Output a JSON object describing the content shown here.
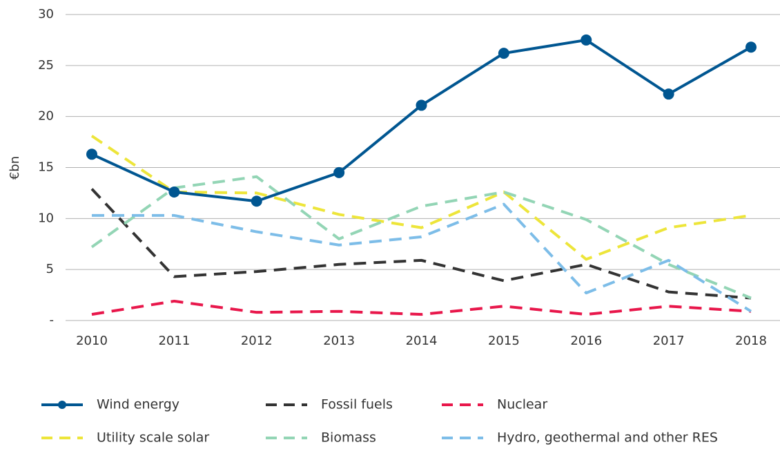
{
  "chart_data": {
    "type": "line",
    "y_label": "€bn",
    "categories": [
      "2010",
      "2011",
      "2012",
      "2013",
      "2014",
      "2015",
      "2016",
      "2017",
      "2018"
    ],
    "ylim": [
      0,
      30
    ],
    "yticks": [
      {
        "value": 0,
        "label": "-"
      },
      5,
      10,
      15,
      20,
      25,
      30
    ],
    "grid": true,
    "legend": "bottom",
    "series": [
      {
        "name": "Wind energy",
        "color": "#005691",
        "dashed": false,
        "markers": true,
        "values": [
          16.3,
          12.6,
          11.7,
          14.5,
          21.1,
          26.2,
          27.5,
          22.2,
          26.8
        ]
      },
      {
        "name": "Fossil fuels",
        "color": "#333333",
        "dashed": true,
        "markers": false,
        "values": [
          12.9,
          4.3,
          4.8,
          5.5,
          5.9,
          3.9,
          5.5,
          2.8,
          2.2
        ]
      },
      {
        "name": "Nuclear",
        "color": "#e8174b",
        "dashed": true,
        "markers": false,
        "values": [
          0.6,
          1.9,
          0.8,
          0.9,
          0.6,
          1.4,
          0.6,
          1.4,
          0.9
        ]
      },
      {
        "name": "Utility scale solar",
        "color": "#ede53a",
        "dashed": true,
        "markers": false,
        "values": [
          18.1,
          12.6,
          12.5,
          10.4,
          9.1,
          12.6,
          6.0,
          9.1,
          10.3
        ]
      },
      {
        "name": "Biomass",
        "color": "#93d5b5",
        "dashed": true,
        "markers": false,
        "values": [
          7.2,
          13.0,
          14.1,
          8.0,
          11.2,
          12.6,
          9.9,
          5.5,
          2.2
        ]
      },
      {
        "name": "Hydro, geothermal and other RES",
        "color": "#7dbde8",
        "dashed": true,
        "markers": false,
        "values": [
          10.3,
          10.3,
          8.7,
          7.4,
          8.2,
          11.4,
          2.7,
          5.9,
          0.9
        ]
      }
    ]
  }
}
